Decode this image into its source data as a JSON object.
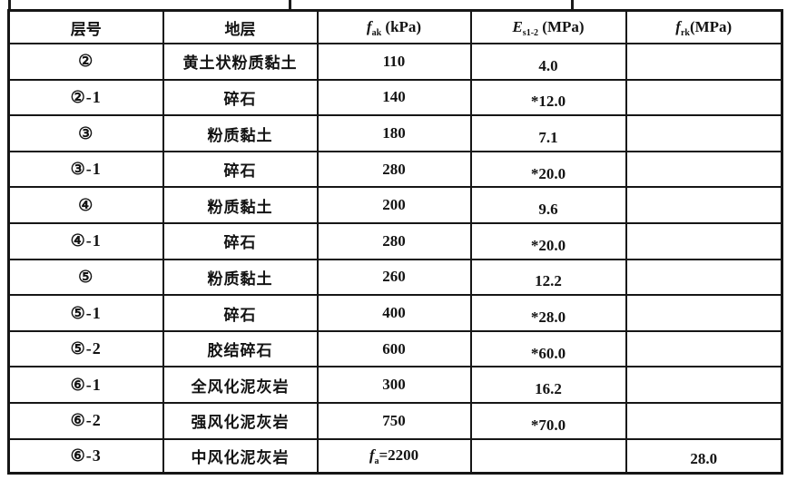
{
  "page": {
    "background_color": "#ffffff",
    "text_color": "#131313",
    "grid_color": "#161616"
  },
  "table": {
    "name": "bearing-capacity-and-modulus-table",
    "columns": [
      {
        "key": "layer_no",
        "label": "层号"
      },
      {
        "key": "stratum",
        "label": "地层"
      },
      {
        "key": "fak",
        "label_var": "f",
        "label_sub": "ak",
        "label_unit": " (kPa)"
      },
      {
        "key": "es12",
        "label_var": "E",
        "label_sub": "s1-2",
        "label_unit": " (MPa)"
      },
      {
        "key": "frk",
        "label_var": "f",
        "label_sub": "rk",
        "label_unit": "(MPa)"
      }
    ],
    "rows": [
      [
        "②",
        "黄土状粉质黏土",
        "110",
        "4.0",
        ""
      ],
      [
        "②-1",
        "碎石",
        "140",
        "*12.0",
        ""
      ],
      [
        "③",
        "粉质黏土",
        "180",
        "7.1",
        ""
      ],
      [
        "③-1",
        "碎石",
        "280",
        "*20.0",
        ""
      ],
      [
        "④",
        "粉质黏土",
        "200",
        "9.6",
        ""
      ],
      [
        "④-1",
        "碎石",
        "280",
        "*20.0",
        ""
      ],
      [
        "⑤",
        "粉质黏土",
        "260",
        "12.2",
        ""
      ],
      [
        "⑤-1",
        "碎石",
        "400",
        "*28.0",
        ""
      ],
      [
        "⑤-2",
        "胶结碎石",
        "600",
        "*60.0",
        ""
      ],
      [
        "⑥-1",
        "全风化泥灰岩",
        "300",
        "16.2",
        ""
      ],
      [
        "⑥-2",
        "强风化泥灰岩",
        "750",
        "*70.0",
        ""
      ],
      [
        "⑥-3",
        "中风化泥灰岩",
        {
          "var": "f",
          "sub": "a",
          "rest": "=2200"
        },
        "",
        "28.0"
      ]
    ]
  }
}
